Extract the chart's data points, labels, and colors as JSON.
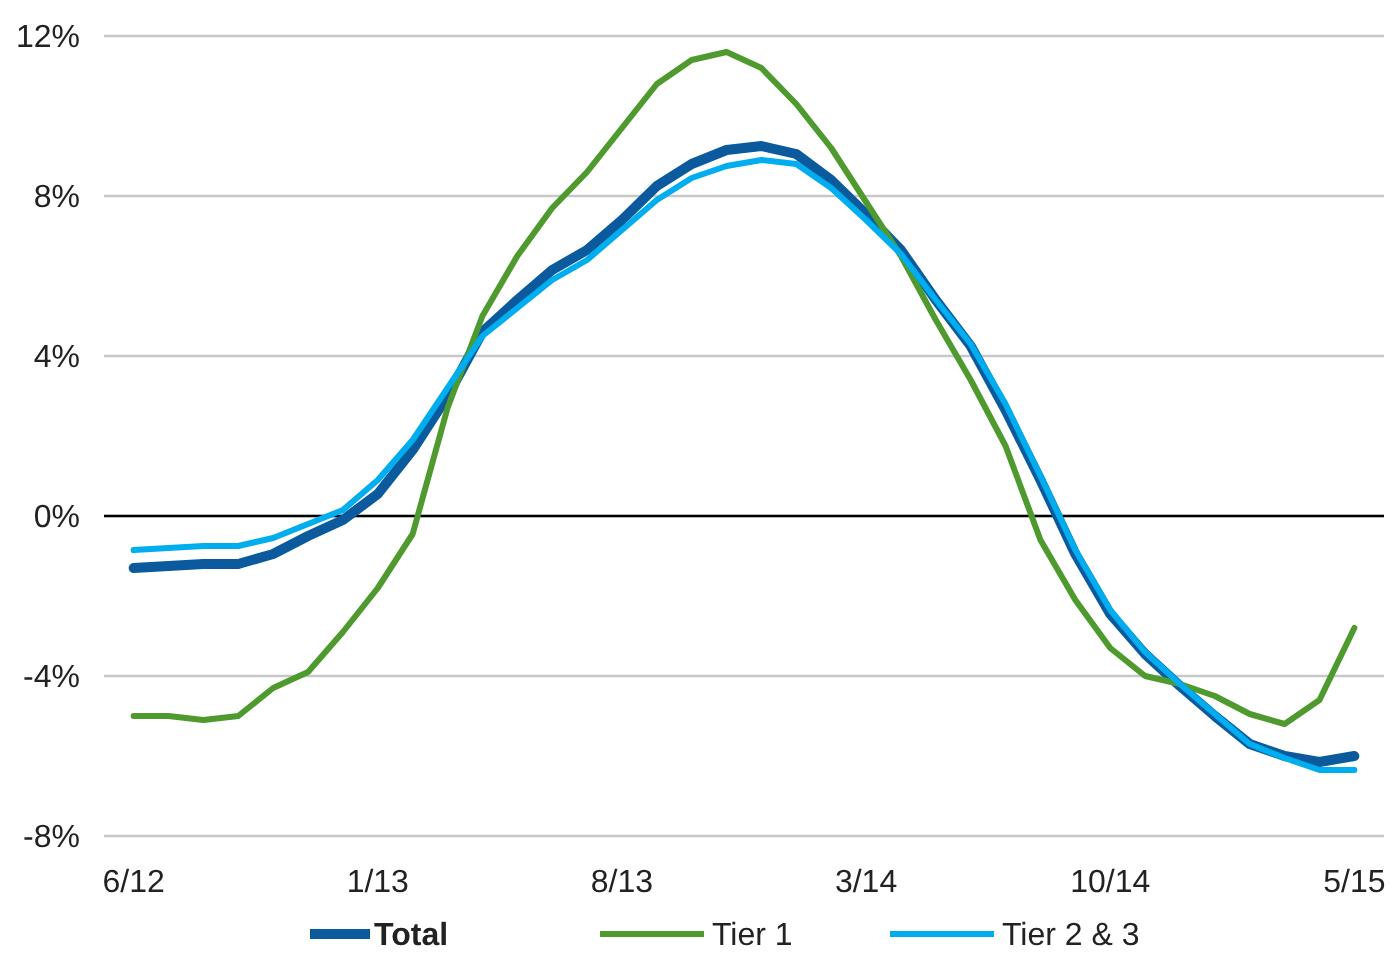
{
  "chart_data": {
    "type": "line",
    "categories": [
      "6/12",
      null,
      null,
      null,
      null,
      null,
      null,
      "1/13",
      null,
      null,
      null,
      null,
      null,
      null,
      "8/13",
      null,
      null,
      null,
      null,
      null,
      null,
      "3/14",
      null,
      null,
      null,
      null,
      null,
      null,
      "10/14",
      null,
      null,
      null,
      null,
      null,
      null,
      "5/15"
    ],
    "ylim": [
      -8,
      12
    ],
    "yticks": [
      {
        "value": -8,
        "label": "-8%"
      },
      {
        "value": -4,
        "label": "-4%"
      },
      {
        "value": 0,
        "label": "0%"
      },
      {
        "value": 4,
        "label": "4%"
      },
      {
        "value": 8,
        "label": "8%"
      },
      {
        "value": 12,
        "label": "12%"
      }
    ],
    "grid": "y",
    "legend": "bottom",
    "marker": "none",
    "line_style": "solid",
    "ref_lines": [
      {
        "axis": "y",
        "value": 0,
        "color": "#000000"
      }
    ],
    "series": [
      {
        "name": "Total",
        "color": "#0b5a9e",
        "values": [
          -1.3,
          -1.25,
          -1.2,
          -1.2,
          -0.95,
          -0.5,
          -0.1,
          0.55,
          1.65,
          3.0,
          4.6,
          5.4,
          6.15,
          6.65,
          7.4,
          8.25,
          8.8,
          9.15,
          9.25,
          9.05,
          8.4,
          7.55,
          6.65,
          5.4,
          4.25,
          2.65,
          0.9,
          -0.95,
          -2.45,
          -3.45,
          -4.25,
          -5.0,
          -5.7,
          -6.0,
          -6.15,
          -6.0
        ]
      },
      {
        "name": "Tier 1",
        "color": "#4e9a2e",
        "values": [
          -5.0,
          -5.0,
          -5.1,
          -5.0,
          -4.3,
          -3.9,
          -2.9,
          -1.8,
          -0.45,
          2.7,
          5.0,
          6.5,
          7.7,
          8.6,
          9.7,
          10.8,
          11.4,
          11.6,
          11.2,
          10.3,
          9.2,
          7.85,
          6.5,
          4.9,
          3.4,
          1.75,
          -0.6,
          -2.1,
          -3.3,
          -4.0,
          -4.2,
          -4.5,
          -4.95,
          -5.2,
          -4.6,
          -2.8
        ]
      },
      {
        "name": "Tier 2 & 3",
        "color": "#00aeef",
        "values": [
          -0.85,
          -0.8,
          -0.75,
          -0.75,
          -0.55,
          -0.2,
          0.15,
          0.9,
          1.9,
          3.2,
          4.5,
          5.2,
          5.9,
          6.4,
          7.15,
          7.9,
          8.45,
          8.75,
          8.9,
          8.8,
          8.2,
          7.4,
          6.55,
          5.4,
          4.3,
          2.8,
          1.0,
          -0.85,
          -2.35,
          -3.4,
          -4.2,
          -4.95,
          -5.7,
          -6.05,
          -6.35,
          -6.35
        ]
      }
    ]
  }
}
